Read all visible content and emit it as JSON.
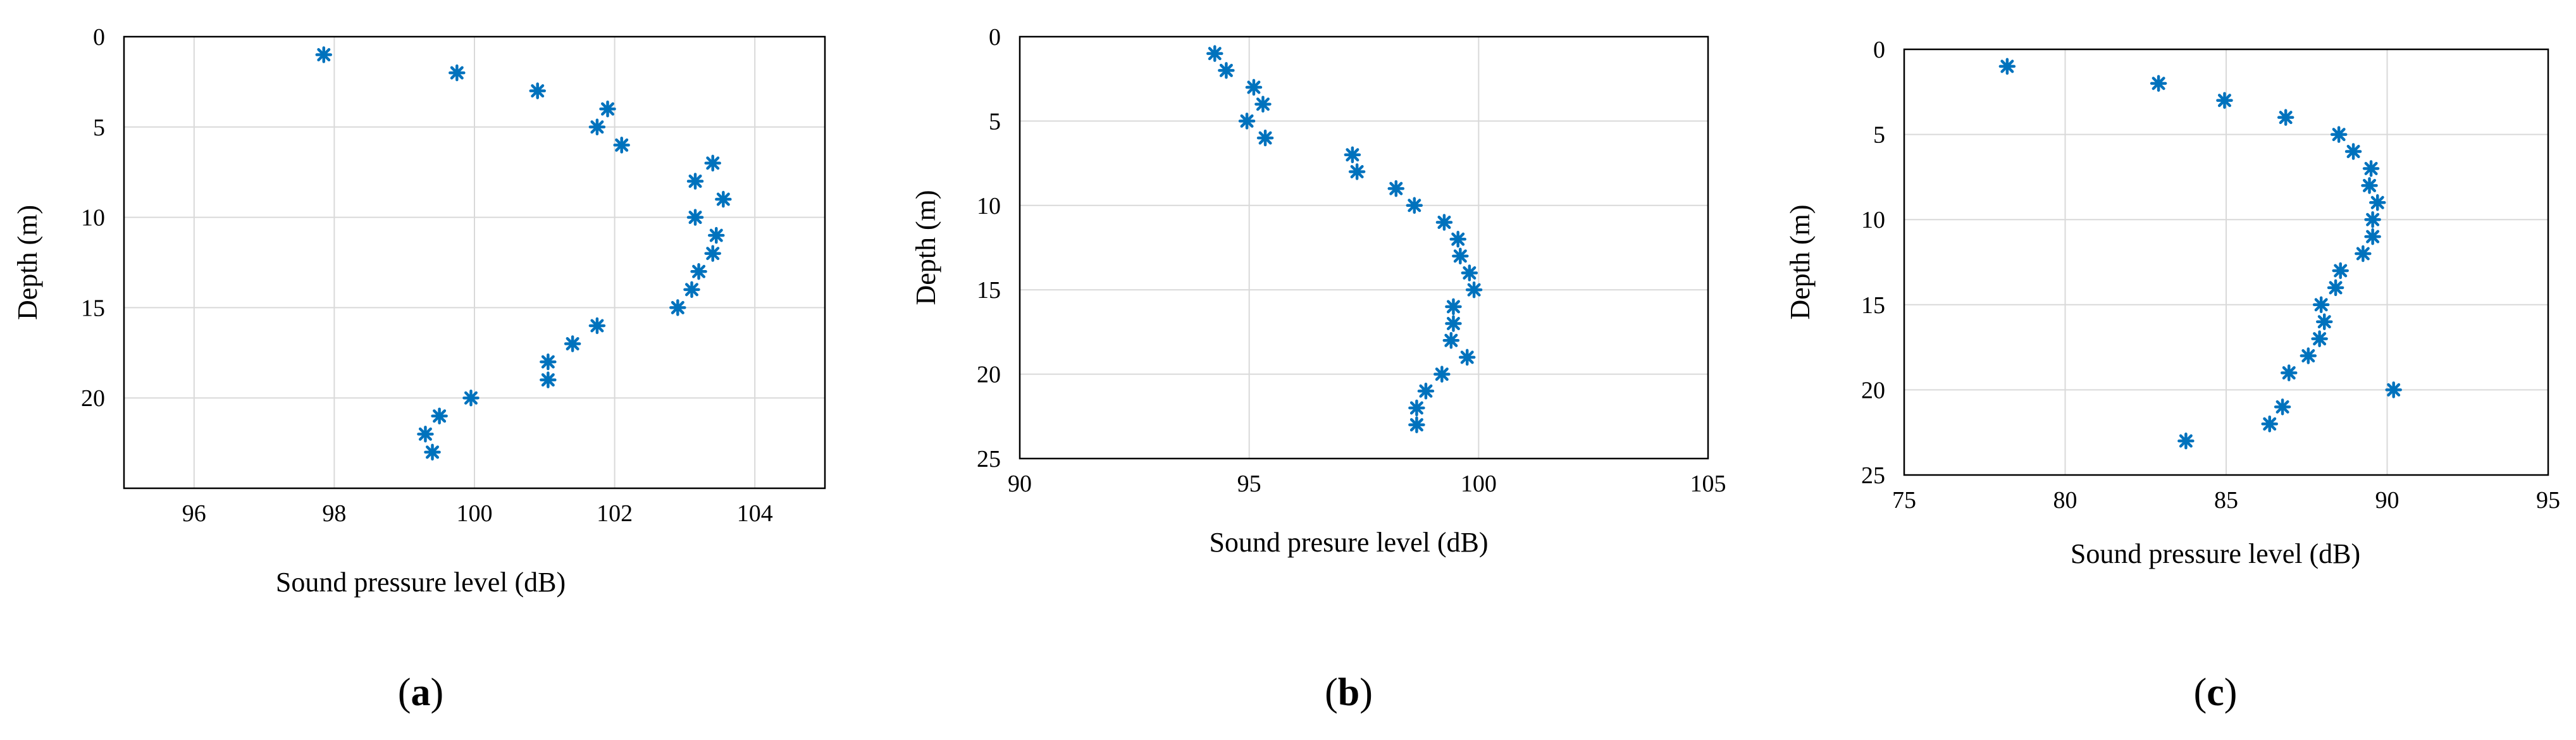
{
  "marker_color": "#0072bd",
  "chart_data": [
    {
      "type": "scatter",
      "panel_label": "a",
      "xlabel": "Sound pressure level (dB)",
      "ylabel": "Depth (m)",
      "xlim": [
        95,
        105
      ],
      "ylim": [
        0,
        25
      ],
      "y_reversed": true,
      "xticks": [
        96,
        98,
        100,
        102,
        104
      ],
      "yticks": [
        0,
        5,
        10,
        15,
        20
      ],
      "grid": true,
      "marker": "asterisk",
      "points": [
        {
          "x": 97.85,
          "y": 1
        },
        {
          "x": 99.75,
          "y": 2
        },
        {
          "x": 100.9,
          "y": 3
        },
        {
          "x": 101.9,
          "y": 4
        },
        {
          "x": 101.75,
          "y": 5
        },
        {
          "x": 102.1,
          "y": 6
        },
        {
          "x": 103.4,
          "y": 7
        },
        {
          "x": 103.15,
          "y": 8
        },
        {
          "x": 103.55,
          "y": 9
        },
        {
          "x": 103.15,
          "y": 10
        },
        {
          "x": 103.45,
          "y": 11
        },
        {
          "x": 103.4,
          "y": 12
        },
        {
          "x": 103.2,
          "y": 13
        },
        {
          "x": 103.1,
          "y": 14
        },
        {
          "x": 102.9,
          "y": 15
        },
        {
          "x": 101.75,
          "y": 16
        },
        {
          "x": 101.4,
          "y": 17
        },
        {
          "x": 101.05,
          "y": 18
        },
        {
          "x": 101.05,
          "y": 19
        },
        {
          "x": 99.95,
          "y": 20
        },
        {
          "x": 99.5,
          "y": 21
        },
        {
          "x": 99.3,
          "y": 22
        },
        {
          "x": 99.4,
          "y": 23
        }
      ]
    },
    {
      "type": "scatter",
      "panel_label": "b",
      "xlabel": "Sound presure level (dB)",
      "ylabel": "Depth (m)",
      "xlim": [
        90,
        105
      ],
      "ylim": [
        0,
        25
      ],
      "y_reversed": true,
      "xticks": [
        90,
        95,
        100,
        105
      ],
      "yticks": [
        0,
        5,
        10,
        15,
        20,
        25
      ],
      "grid": true,
      "marker": "asterisk",
      "points": [
        {
          "x": 94.25,
          "y": 1
        },
        {
          "x": 94.5,
          "y": 2
        },
        {
          "x": 95.1,
          "y": 3
        },
        {
          "x": 95.3,
          "y": 4
        },
        {
          "x": 94.95,
          "y": 5
        },
        {
          "x": 95.35,
          "y": 6
        },
        {
          "x": 97.25,
          "y": 7
        },
        {
          "x": 97.35,
          "y": 8
        },
        {
          "x": 98.2,
          "y": 9
        },
        {
          "x": 98.6,
          "y": 10
        },
        {
          "x": 99.25,
          "y": 11
        },
        {
          "x": 99.55,
          "y": 12
        },
        {
          "x": 99.6,
          "y": 13
        },
        {
          "x": 99.8,
          "y": 14
        },
        {
          "x": 99.9,
          "y": 15
        },
        {
          "x": 99.45,
          "y": 16
        },
        {
          "x": 99.45,
          "y": 17
        },
        {
          "x": 99.4,
          "y": 18
        },
        {
          "x": 99.75,
          "y": 19
        },
        {
          "x": 99.2,
          "y": 20
        },
        {
          "x": 98.85,
          "y": 21
        },
        {
          "x": 98.65,
          "y": 22
        },
        {
          "x": 98.65,
          "y": 23
        }
      ]
    },
    {
      "type": "scatter",
      "panel_label": "c",
      "xlabel": "Sound pressure level (dB)",
      "ylabel": "Depth (m)",
      "xlim": [
        75,
        95
      ],
      "ylim": [
        0,
        25
      ],
      "y_reversed": true,
      "xticks": [
        75,
        80,
        85,
        90,
        95
      ],
      "yticks": [
        0,
        5,
        10,
        15,
        20,
        25
      ],
      "grid": true,
      "marker": "asterisk",
      "points": [
        {
          "x": 78.2,
          "y": 1
        },
        {
          "x": 82.9,
          "y": 2
        },
        {
          "x": 84.95,
          "y": 3
        },
        {
          "x": 86.85,
          "y": 4
        },
        {
          "x": 88.5,
          "y": 5
        },
        {
          "x": 88.95,
          "y": 6
        },
        {
          "x": 89.5,
          "y": 7
        },
        {
          "x": 89.45,
          "y": 8
        },
        {
          "x": 89.7,
          "y": 9
        },
        {
          "x": 89.55,
          "y": 10
        },
        {
          "x": 89.55,
          "y": 11
        },
        {
          "x": 89.25,
          "y": 12
        },
        {
          "x": 88.55,
          "y": 13
        },
        {
          "x": 88.4,
          "y": 14
        },
        {
          "x": 87.95,
          "y": 15
        },
        {
          "x": 88.05,
          "y": 16
        },
        {
          "x": 87.9,
          "y": 17
        },
        {
          "x": 87.55,
          "y": 18
        },
        {
          "x": 86.95,
          "y": 19
        },
        {
          "x": 90.2,
          "y": 20
        },
        {
          "x": 86.75,
          "y": 21
        },
        {
          "x": 86.35,
          "y": 22
        },
        {
          "x": 83.75,
          "y": 23
        }
      ]
    }
  ]
}
